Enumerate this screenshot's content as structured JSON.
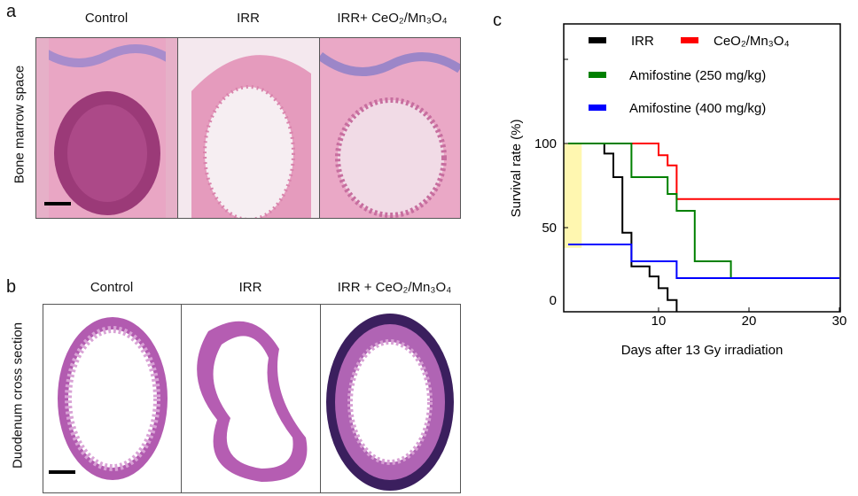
{
  "panel_a": {
    "letter": "a",
    "row_label": "Bone marrow space",
    "columns": [
      "Control",
      "IRR",
      "IRR+ CeO₂/Mn₃O₄"
    ]
  },
  "panel_b": {
    "letter": "b",
    "row_label": "Duodenum cross section",
    "columns": [
      "Control",
      "IRR",
      "IRR + CeO₂/Mn₃O₄"
    ]
  },
  "panel_c": {
    "letter": "c",
    "chart_data": {
      "type": "line",
      "step": true,
      "xlabel": "Days after 13 Gy irradiation",
      "ylabel": "Survival rate (%)",
      "xlim": [
        0,
        30
      ],
      "ylim": [
        0,
        170
      ],
      "xticks": [
        10,
        20,
        30
      ],
      "yticks": [
        0,
        50,
        100
      ],
      "grid": false,
      "legend_position": "top",
      "highlight": {
        "x": [
          0,
          1.5
        ],
        "y": [
          38,
          100
        ],
        "color": "#fff7b0"
      },
      "series": [
        {
          "name": "IRR",
          "color": "#000000",
          "x": [
            0,
            4,
            5,
            6,
            7,
            9,
            10,
            11,
            12
          ],
          "y": [
            100,
            94,
            80,
            47,
            27,
            21,
            14,
            7,
            0
          ],
          "end_x": 12
        },
        {
          "name": "CeO₂/Mn₃O₄",
          "color": "#ff0000",
          "x": [
            0,
            10,
            11,
            12
          ],
          "y": [
            100,
            93,
            87,
            67
          ],
          "end_x": 30
        },
        {
          "name": "Amifostine (250 mg/kg)",
          "color": "#008000",
          "x": [
            0,
            7,
            11,
            12,
            14,
            18
          ],
          "y": [
            100,
            80,
            70,
            60,
            30,
            20
          ],
          "end_x": 30
        },
        {
          "name": "Amifostine (400 mg/kg)",
          "color": "#0000ff",
          "x": [
            0,
            7,
            12
          ],
          "y": [
            40,
            30,
            20
          ],
          "end_x": 30
        }
      ]
    }
  }
}
